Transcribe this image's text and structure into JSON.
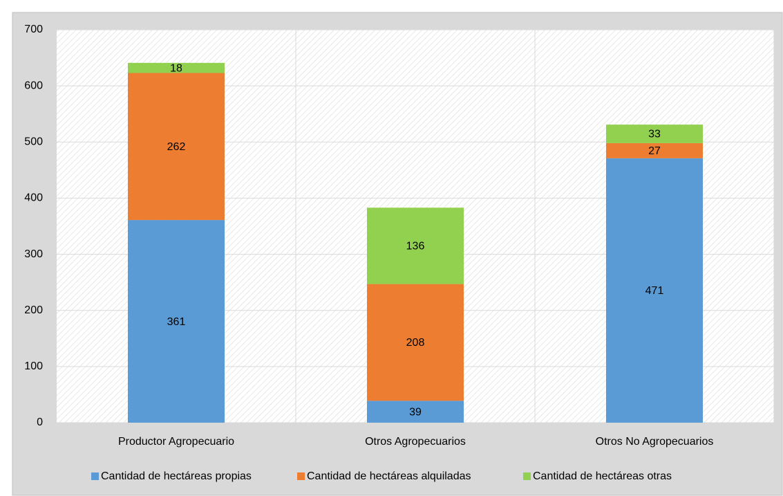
{
  "chart_data": {
    "type": "bar",
    "stacked": true,
    "categories": [
      "Productor Agropecuario",
      "Otros Agropecuarios",
      "Otros No Agropecuarios"
    ],
    "series": [
      {
        "name": "Cantidad de hectáreas propias",
        "color": "#5b9bd5",
        "values": [
          361,
          39,
          471
        ]
      },
      {
        "name": "Cantidad de hectáreas alquiladas",
        "color": "#ed7d31",
        "values": [
          262,
          208,
          27
        ]
      },
      {
        "name": "Cantidad de hectáreas otras",
        "color": "#92d050",
        "values": [
          18,
          136,
          33
        ]
      }
    ],
    "ylim": [
      0,
      700
    ],
    "yticks": [
      0,
      100,
      200,
      300,
      400,
      500,
      600,
      700
    ],
    "grid": true,
    "legend": "bottom"
  }
}
